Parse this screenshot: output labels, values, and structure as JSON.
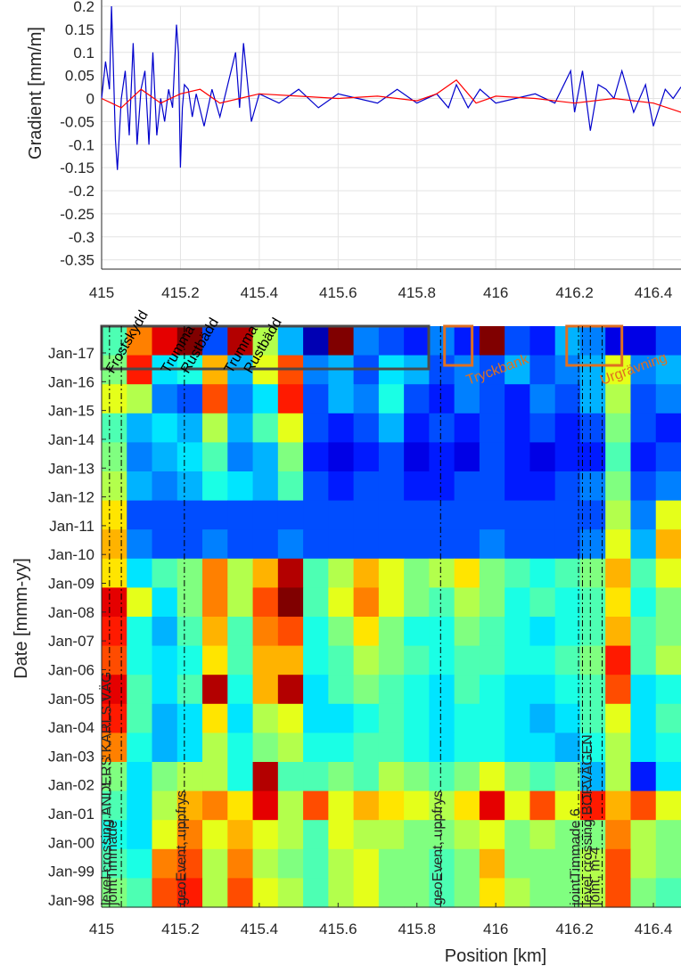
{
  "chart_data": [
    {
      "type": "line",
      "ylabel": "Gradient [mm/m]",
      "xlabel": "",
      "xlim": [
        415.0,
        416.47
      ],
      "ylim": [
        -0.37,
        0.2
      ],
      "grid": true,
      "xticks": [
        415,
        415.2,
        415.4,
        415.6,
        415.8,
        416,
        416.2,
        416.4
      ],
      "xtick_labels": [
        "415",
        "415.2",
        "415.4",
        "415.6",
        "415.8",
        "416",
        "416.2",
        "416.4"
      ],
      "yticks": [
        0.2,
        0.15,
        0.1,
        0.05,
        0,
        -0.05,
        -0.1,
        -0.15,
        -0.2,
        -0.25,
        -0.3,
        -0.35
      ],
      "ytick_labels": [
        "0.2",
        "0.15",
        "0.1",
        "0.05",
        "0",
        "-0.05",
        "-0.1",
        "-0.15",
        "-0.2",
        "-0.25",
        "-0.3",
        "-0.35"
      ],
      "series": [
        {
          "color": "#0000cc",
          "x": [
            415.0,
            415.01,
            415.02,
            415.025,
            415.03,
            415.035,
            415.04,
            415.05,
            415.06,
            415.07,
            415.08,
            415.09,
            415.1,
            415.11,
            415.12,
            415.13,
            415.14,
            415.15,
            415.16,
            415.17,
            415.18,
            415.19,
            415.195,
            415.2,
            415.205,
            415.21,
            415.22,
            415.23,
            415.24,
            415.26,
            415.28,
            415.3,
            415.32,
            415.34,
            415.35,
            415.36,
            415.38,
            415.4,
            415.45,
            415.5,
            415.55,
            415.6,
            415.65,
            415.7,
            415.75,
            415.8,
            415.85,
            415.88,
            415.9,
            415.93,
            415.96,
            416.0,
            416.05,
            416.1,
            416.15,
            416.19,
            416.2,
            416.22,
            416.24,
            416.26,
            416.28,
            416.3,
            416.32,
            416.35,
            416.38,
            416.4,
            416.43,
            416.45,
            416.47
          ],
          "y": [
            0.0,
            0.08,
            0.02,
            0.2,
            0.06,
            -0.09,
            -0.155,
            0.0,
            0.06,
            -0.08,
            0.12,
            -0.1,
            0.02,
            0.06,
            -0.1,
            0.1,
            -0.08,
            0.0,
            -0.05,
            0.02,
            -0.02,
            0.16,
            0.1,
            -0.15,
            -0.02,
            0.03,
            0.02,
            -0.04,
            0.01,
            -0.06,
            0.02,
            -0.04,
            0.03,
            0.1,
            -0.02,
            0.12,
            -0.05,
            0.01,
            -0.01,
            0.02,
            -0.02,
            0.01,
            0.0,
            -0.01,
            0.02,
            -0.01,
            0.01,
            -0.02,
            0.03,
            -0.02,
            0.02,
            -0.01,
            0.0,
            0.01,
            -0.01,
            0.06,
            -0.03,
            0.06,
            -0.07,
            0.03,
            0.02,
            0.0,
            0.06,
            -0.03,
            0.03,
            -0.06,
            0.02,
            0.0,
            0.025
          ]
        },
        {
          "color": "#ff0000",
          "x": [
            415.0,
            415.05,
            415.1,
            415.15,
            415.2,
            415.25,
            415.3,
            415.35,
            415.4,
            415.5,
            415.6,
            415.7,
            415.8,
            415.85,
            415.9,
            415.95,
            416.0,
            416.1,
            416.2,
            416.3,
            416.4,
            416.47
          ],
          "y": [
            0.0,
            -0.02,
            0.02,
            -0.01,
            0.01,
            0.02,
            -0.01,
            0.0,
            0.01,
            0.005,
            0.0,
            0.005,
            -0.005,
            0.01,
            0.04,
            -0.01,
            0.005,
            0.0,
            -0.01,
            0.0,
            -0.01,
            -0.03
          ]
        }
      ]
    },
    {
      "type": "heatmap",
      "xlabel": "Position [km]",
      "ylabel": "Date [mmm-yy]",
      "xlim": [
        415.0,
        416.47
      ],
      "xticks": [
        415,
        415.2,
        415.4,
        415.6,
        415.8,
        416,
        416.2,
        416.4
      ],
      "xtick_labels": [
        "415",
        "415.2",
        "415.4",
        "415.6",
        "415.8",
        "416",
        "416.2",
        "416.4"
      ],
      "ytick_labels": [
        "Jan-17",
        "Jan-16",
        "Jan-15",
        "Jan-14",
        "Jan-13",
        "Jan-12",
        "Jan-11",
        "Jan-10",
        "Jan-09",
        "Jan-08",
        "Jan-07",
        "Jan-06",
        "Jan-05",
        "Jan-04",
        "Jan-03",
        "Jan-02",
        "Jan-01",
        "Jan-00",
        "Jan-99",
        "Jan-98"
      ],
      "colormap": "jet",
      "value_range": [
        0,
        1
      ],
      "columns": 23,
      "rows": [
        [
          0.45,
          0.75,
          0.9,
          1.0,
          0.2,
          0.95,
          0.55,
          0.3,
          0.05,
          1.0,
          0.25,
          0.2,
          0.15,
          0.25,
          0.15,
          1.0,
          0.2,
          0.15,
          0.3,
          0.25,
          0.1,
          0.1,
          0.2
        ],
        [
          0.5,
          0.85,
          0.35,
          0.4,
          0.7,
          0.3,
          0.6,
          0.8,
          0.25,
          0.3,
          0.2,
          0.35,
          0.3,
          0.2,
          0.25,
          0.2,
          0.3,
          0.2,
          0.25,
          0.3,
          0.6,
          0.25,
          0.3
        ],
        [
          0.6,
          0.55,
          0.25,
          0.2,
          0.8,
          0.25,
          0.35,
          0.85,
          0.2,
          0.3,
          0.25,
          0.4,
          0.2,
          0.15,
          0.25,
          0.2,
          0.15,
          0.25,
          0.2,
          0.3,
          0.55,
          0.2,
          0.25
        ],
        [
          0.45,
          0.3,
          0.35,
          0.3,
          0.55,
          0.3,
          0.45,
          0.6,
          0.2,
          0.15,
          0.2,
          0.3,
          0.15,
          0.2,
          0.15,
          0.2,
          0.15,
          0.2,
          0.15,
          0.2,
          0.5,
          0.2,
          0.15
        ],
        [
          0.5,
          0.25,
          0.3,
          0.35,
          0.45,
          0.25,
          0.3,
          0.5,
          0.15,
          0.1,
          0.15,
          0.2,
          0.1,
          0.15,
          0.1,
          0.2,
          0.15,
          0.1,
          0.15,
          0.15,
          0.45,
          0.15,
          0.2
        ],
        [
          0.55,
          0.3,
          0.25,
          0.3,
          0.4,
          0.35,
          0.3,
          0.45,
          0.2,
          0.15,
          0.2,
          0.2,
          0.15,
          0.15,
          0.2,
          0.2,
          0.15,
          0.15,
          0.2,
          0.25,
          0.5,
          0.2,
          0.25
        ],
        [
          0.65,
          0.2,
          0.2,
          0.2,
          0.2,
          0.2,
          0.2,
          0.2,
          0.2,
          0.2,
          0.2,
          0.2,
          0.2,
          0.2,
          0.2,
          0.2,
          0.2,
          0.2,
          0.2,
          0.2,
          0.55,
          0.25,
          0.6
        ],
        [
          0.7,
          0.25,
          0.2,
          0.2,
          0.25,
          0.2,
          0.2,
          0.25,
          0.2,
          0.2,
          0.2,
          0.2,
          0.2,
          0.2,
          0.2,
          0.25,
          0.2,
          0.2,
          0.2,
          0.25,
          0.6,
          0.3,
          0.7
        ],
        [
          0.65,
          0.35,
          0.45,
          0.5,
          0.75,
          0.55,
          0.7,
          0.95,
          0.45,
          0.55,
          0.7,
          0.6,
          0.5,
          0.55,
          0.65,
          0.5,
          0.45,
          0.4,
          0.45,
          0.5,
          0.7,
          0.45,
          0.6
        ],
        [
          0.9,
          0.6,
          0.35,
          0.5,
          0.75,
          0.55,
          0.8,
          1.0,
          0.45,
          0.6,
          0.75,
          0.6,
          0.5,
          0.45,
          0.55,
          0.5,
          0.4,
          0.45,
          0.4,
          0.45,
          0.65,
          0.4,
          0.5
        ],
        [
          0.85,
          0.4,
          0.3,
          0.45,
          0.7,
          0.45,
          0.75,
          0.8,
          0.4,
          0.5,
          0.65,
          0.5,
          0.4,
          0.4,
          0.5,
          0.45,
          0.4,
          0.35,
          0.4,
          0.45,
          0.7,
          0.45,
          0.5
        ],
        [
          0.8,
          0.4,
          0.35,
          0.4,
          0.65,
          0.45,
          0.7,
          0.7,
          0.4,
          0.45,
          0.55,
          0.5,
          0.45,
          0.4,
          0.45,
          0.45,
          0.4,
          0.4,
          0.45,
          0.5,
          0.85,
          0.45,
          0.55
        ],
        [
          0.9,
          0.45,
          0.35,
          0.45,
          0.95,
          0.4,
          0.7,
          0.95,
          0.35,
          0.45,
          0.5,
          0.45,
          0.4,
          0.35,
          0.45,
          0.4,
          0.35,
          0.35,
          0.4,
          0.45,
          0.8,
          0.35,
          0.4
        ],
        [
          0.85,
          0.45,
          0.3,
          0.35,
          0.65,
          0.35,
          0.55,
          0.6,
          0.35,
          0.35,
          0.4,
          0.45,
          0.4,
          0.35,
          0.4,
          0.4,
          0.35,
          0.3,
          0.35,
          0.45,
          0.6,
          0.35,
          0.45
        ],
        [
          0.75,
          0.4,
          0.3,
          0.35,
          0.55,
          0.4,
          0.5,
          0.55,
          0.4,
          0.4,
          0.45,
          0.45,
          0.4,
          0.35,
          0.4,
          0.4,
          0.35,
          0.35,
          0.3,
          0.4,
          0.55,
          0.35,
          0.4
        ],
        [
          0.5,
          0.35,
          0.5,
          0.55,
          0.55,
          0.4,
          0.95,
          0.45,
          0.45,
          0.5,
          0.45,
          0.55,
          0.5,
          0.45,
          0.5,
          0.6,
          0.5,
          0.45,
          0.5,
          0.3,
          0.55,
          0.15,
          0.35
        ],
        [
          0.45,
          0.35,
          0.55,
          0.7,
          0.75,
          0.65,
          0.9,
          0.55,
          0.8,
          0.6,
          0.7,
          0.65,
          0.6,
          0.55,
          0.65,
          0.9,
          0.6,
          0.8,
          0.6,
          0.85,
          0.7,
          0.8,
          0.6
        ],
        [
          0.4,
          0.35,
          0.6,
          0.75,
          0.6,
          0.7,
          0.6,
          0.55,
          0.45,
          0.6,
          0.55,
          0.55,
          0.5,
          0.5,
          0.55,
          0.6,
          0.5,
          0.55,
          0.5,
          0.5,
          0.75,
          0.55,
          0.5
        ],
        [
          0.45,
          0.4,
          0.75,
          0.8,
          0.55,
          0.75,
          0.55,
          0.5,
          0.45,
          0.55,
          0.6,
          0.5,
          0.5,
          0.45,
          0.5,
          0.7,
          0.5,
          0.5,
          0.5,
          0.55,
          0.8,
          0.55,
          0.5
        ],
        [
          0.5,
          0.45,
          0.8,
          0.85,
          0.55,
          0.8,
          0.6,
          0.55,
          0.45,
          0.55,
          0.6,
          0.5,
          0.5,
          0.45,
          0.5,
          0.65,
          0.55,
          0.5,
          0.5,
          0.55,
          0.8,
          0.5,
          0.45
        ]
      ],
      "vlines_x": [
        415.02,
        415.05,
        415.21,
        415.86,
        416.21,
        416.22,
        416.24,
        416.27
      ],
      "rect_regions": [
        {
          "x": [
            415.0,
            415.83
          ],
          "label_color": "#4a4a4a"
        },
        {
          "x": [
            415.87,
            415.94
          ],
          "label_color": "#e07020"
        },
        {
          "x": [
            416.18,
            416.32
          ],
          "label_color": "#e07020"
        }
      ],
      "annotations_top": [
        {
          "text": "Frostskydd",
          "x": 415.03,
          "color": "#000000"
        },
        {
          "text": "Trumma",
          "x": 415.17,
          "color": "#000000"
        },
        {
          "text": "Rustbädd",
          "x": 415.22,
          "color": "#000000"
        },
        {
          "text": "Trumma",
          "x": 415.33,
          "color": "#000000"
        },
        {
          "text": "Rustbädd",
          "x": 415.38,
          "color": "#000000"
        },
        {
          "text": "Tryckbank",
          "x": 415.93,
          "color": "#e07020"
        },
        {
          "text": "Urgrävning",
          "x": 416.27,
          "color": "#e07020"
        }
      ],
      "annotations_vertical": [
        {
          "text": "level crossing ANDERS KARLS VÄG",
          "x": 415.01
        },
        {
          "text": "jointTimmade",
          "x": 415.025
        },
        {
          "text": "geoEvent, uppfrys",
          "x": 415.2
        },
        {
          "text": "geoEvent, uppfrys",
          "x": 415.85
        },
        {
          "text": "level crossing BORVÄGEN",
          "x": 416.23
        },
        {
          "text": "jointTimmade 6",
          "x": 416.2
        },
        {
          "text": "joint, m-4",
          "x": 416.25
        }
      ]
    }
  ]
}
